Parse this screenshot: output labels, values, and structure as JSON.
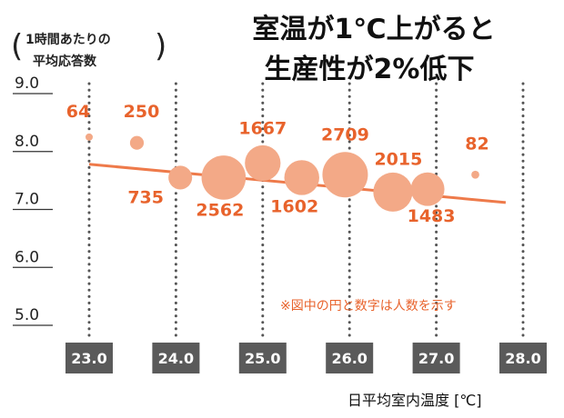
{
  "chart_data": {
    "type": "scatter",
    "title": [
      "室温が1℃上がると",
      "生産性が2%低下"
    ],
    "ylabel": [
      "1時間あたりの",
      "平均応答数"
    ],
    "ylabel_paren_open": "(",
    "ylabel_paren_close": ")",
    "xlabel": "日平均室内温度 [℃]",
    "note": "※図中の円と数字は人数を示す",
    "xlim": [
      23.0,
      28.0
    ],
    "ylim": [
      5.0,
      9.0
    ],
    "x_ticks": [
      "23.0",
      "24.0",
      "25.0",
      "26.0",
      "27.0",
      "28.0"
    ],
    "y_ticks": [
      "5.0",
      "6.0",
      "7.0",
      "8.0",
      "9.0"
    ],
    "grid": "vertical dotted",
    "points": [
      {
        "x": 23.0,
        "y": 8.25,
        "count": 64,
        "label": "64"
      },
      {
        "x": 23.55,
        "y": 8.15,
        "count": 250,
        "label": "250"
      },
      {
        "x": 24.05,
        "y": 7.55,
        "count": 735,
        "label": "735"
      },
      {
        "x": 24.55,
        "y": 7.55,
        "count": 2562,
        "label": "2562"
      },
      {
        "x": 25.0,
        "y": 7.8,
        "count": 1667,
        "label": "1667"
      },
      {
        "x": 25.45,
        "y": 7.55,
        "count": 1602,
        "label": "1602"
      },
      {
        "x": 25.95,
        "y": 7.6,
        "count": 2709,
        "label": "2709"
      },
      {
        "x": 26.5,
        "y": 7.3,
        "count": 2015,
        "label": "2015"
      },
      {
        "x": 26.9,
        "y": 7.35,
        "count": 1483,
        "label": "1483"
      },
      {
        "x": 27.45,
        "y": 7.6,
        "count": 82,
        "label": "82"
      }
    ],
    "trend": {
      "x": [
        23.0,
        27.8
      ],
      "y": [
        7.78,
        7.12
      ]
    },
    "colors": {
      "bubble": "#f3a987",
      "trend": "#ee7a4a",
      "label": "#e8632c",
      "tick_box": "#5a5a5a"
    }
  }
}
